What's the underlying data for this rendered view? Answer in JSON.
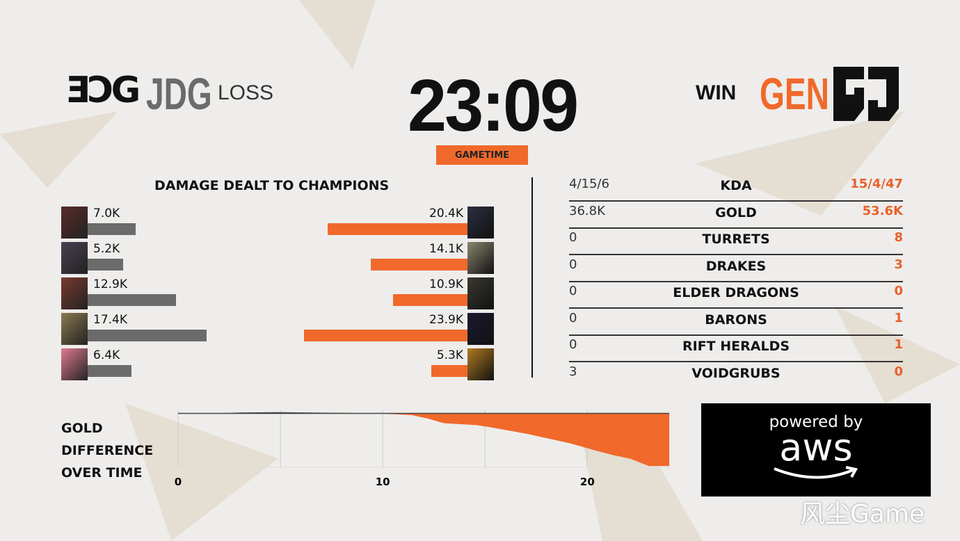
{
  "header": {
    "left_team": {
      "logo": "JDG-logo",
      "name": "JDG",
      "result": "LOSS"
    },
    "right_team": {
      "logo": "GEN-logo",
      "name": "GEN",
      "result": "WIN"
    },
    "game_clock": "23:09",
    "gametime_label": "GAMETIME"
  },
  "colors": {
    "accent": "#f0692b",
    "jdg_bar": "#6b6b6b",
    "background": "#eeedeb"
  },
  "damage": {
    "title": "DAMAGE DEALT TO CHAMPIONS",
    "left": [
      {
        "value": "7.0K",
        "k": 7.0
      },
      {
        "value": "5.2K",
        "k": 5.2
      },
      {
        "value": "12.9K",
        "k": 12.9
      },
      {
        "value": "17.4K",
        "k": 17.4
      },
      {
        "value": "6.4K",
        "k": 6.4
      }
    ],
    "right": [
      {
        "value": "20.4K",
        "k": 20.4
      },
      {
        "value": "14.1K",
        "k": 14.1
      },
      {
        "value": "10.9K",
        "k": 10.9
      },
      {
        "value": "23.9K",
        "k": 23.9
      },
      {
        "value": "5.3K",
        "k": 5.3
      }
    ]
  },
  "stats": [
    {
      "left": "4/15/6",
      "label": "KDA",
      "right": "15/4/47"
    },
    {
      "left": "36.8K",
      "label": "GOLD",
      "right": "53.6K"
    },
    {
      "left": "0",
      "label": "TURRETS",
      "right": "8"
    },
    {
      "left": "0",
      "label": "DRAKES",
      "right": "3"
    },
    {
      "left": "0",
      "label": "ELDER DRAGONS",
      "right": "0"
    },
    {
      "left": "0",
      "label": "BARONS",
      "right": "1"
    },
    {
      "left": "0",
      "label": "RIFT HERALDS",
      "right": "1"
    },
    {
      "left": "3",
      "label": "VOIDGRUBS",
      "right": "0"
    }
  ],
  "chart_data": {
    "type": "area",
    "title": "GOLD DIFFERENCE OVER TIME",
    "xlabel": "",
    "ylabel": "",
    "x_ticks": [
      "0",
      "10",
      "20"
    ],
    "xlim": [
      0,
      24
    ],
    "ylim": [
      -17,
      1
    ],
    "grid": true,
    "x": [
      0,
      2,
      3,
      4.9,
      7.5,
      9.1,
      9.7,
      11.4,
      12.2,
      13,
      14.6,
      15.2,
      17.1,
      19.2,
      20.4,
      21.3,
      22.1,
      23,
      24
    ],
    "y": [
      0,
      -0.1,
      0.3,
      0.4,
      0.2,
      0.1,
      0,
      -0.5,
      -1.6,
      -3.1,
      -3.7,
      -4.3,
      -6.5,
      -9.5,
      -11.7,
      -13.2,
      -14.3,
      -16.6,
      -16.6
    ]
  },
  "sponsor": {
    "line1": "powered by",
    "line2": "aws"
  },
  "watermark": "风尘Game"
}
